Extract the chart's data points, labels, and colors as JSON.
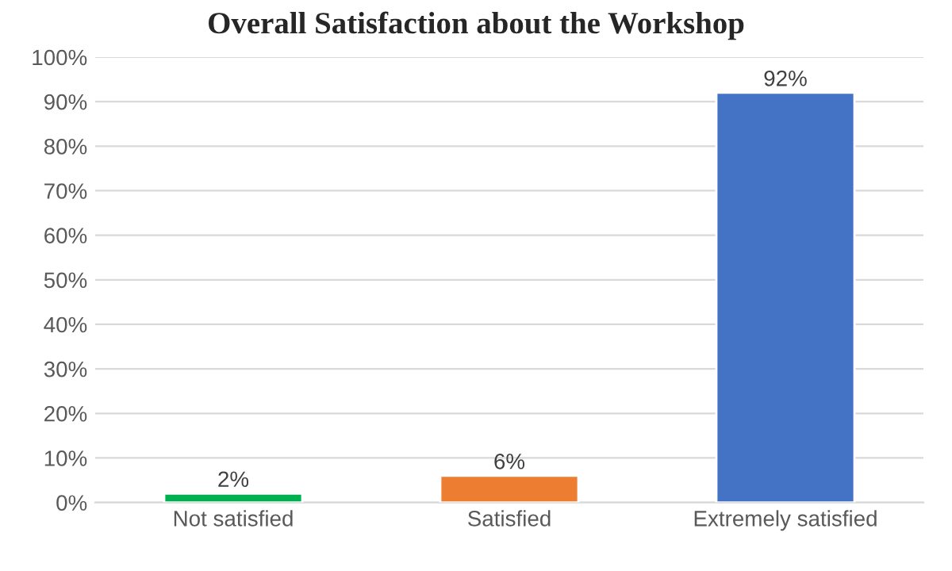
{
  "chart_data": {
    "type": "bar",
    "title": "Overall Satisfaction about the Workshop",
    "categories": [
      "Not satisfied",
      "Satisfied",
      "Extremely satisfied"
    ],
    "values": [
      2,
      6,
      92
    ],
    "colors": [
      "#00b050",
      "#ed7d31",
      "#4472c4"
    ],
    "value_labels": [
      "2%",
      "6%",
      "92%"
    ],
    "ylim": [
      0,
      100
    ],
    "yticks": [
      {
        "value": 0,
        "label": "0%"
      },
      {
        "value": 10,
        "label": "10%"
      },
      {
        "value": 20,
        "label": "20%"
      },
      {
        "value": 30,
        "label": "30%"
      },
      {
        "value": 40,
        "label": "40%"
      },
      {
        "value": 50,
        "label": "50%"
      },
      {
        "value": 60,
        "label": "60%"
      },
      {
        "value": 70,
        "label": "70%"
      },
      {
        "value": 80,
        "label": "80%"
      },
      {
        "value": 90,
        "label": "90%"
      },
      {
        "value": 100,
        "label": "100%"
      }
    ],
    "grid": "y"
  }
}
